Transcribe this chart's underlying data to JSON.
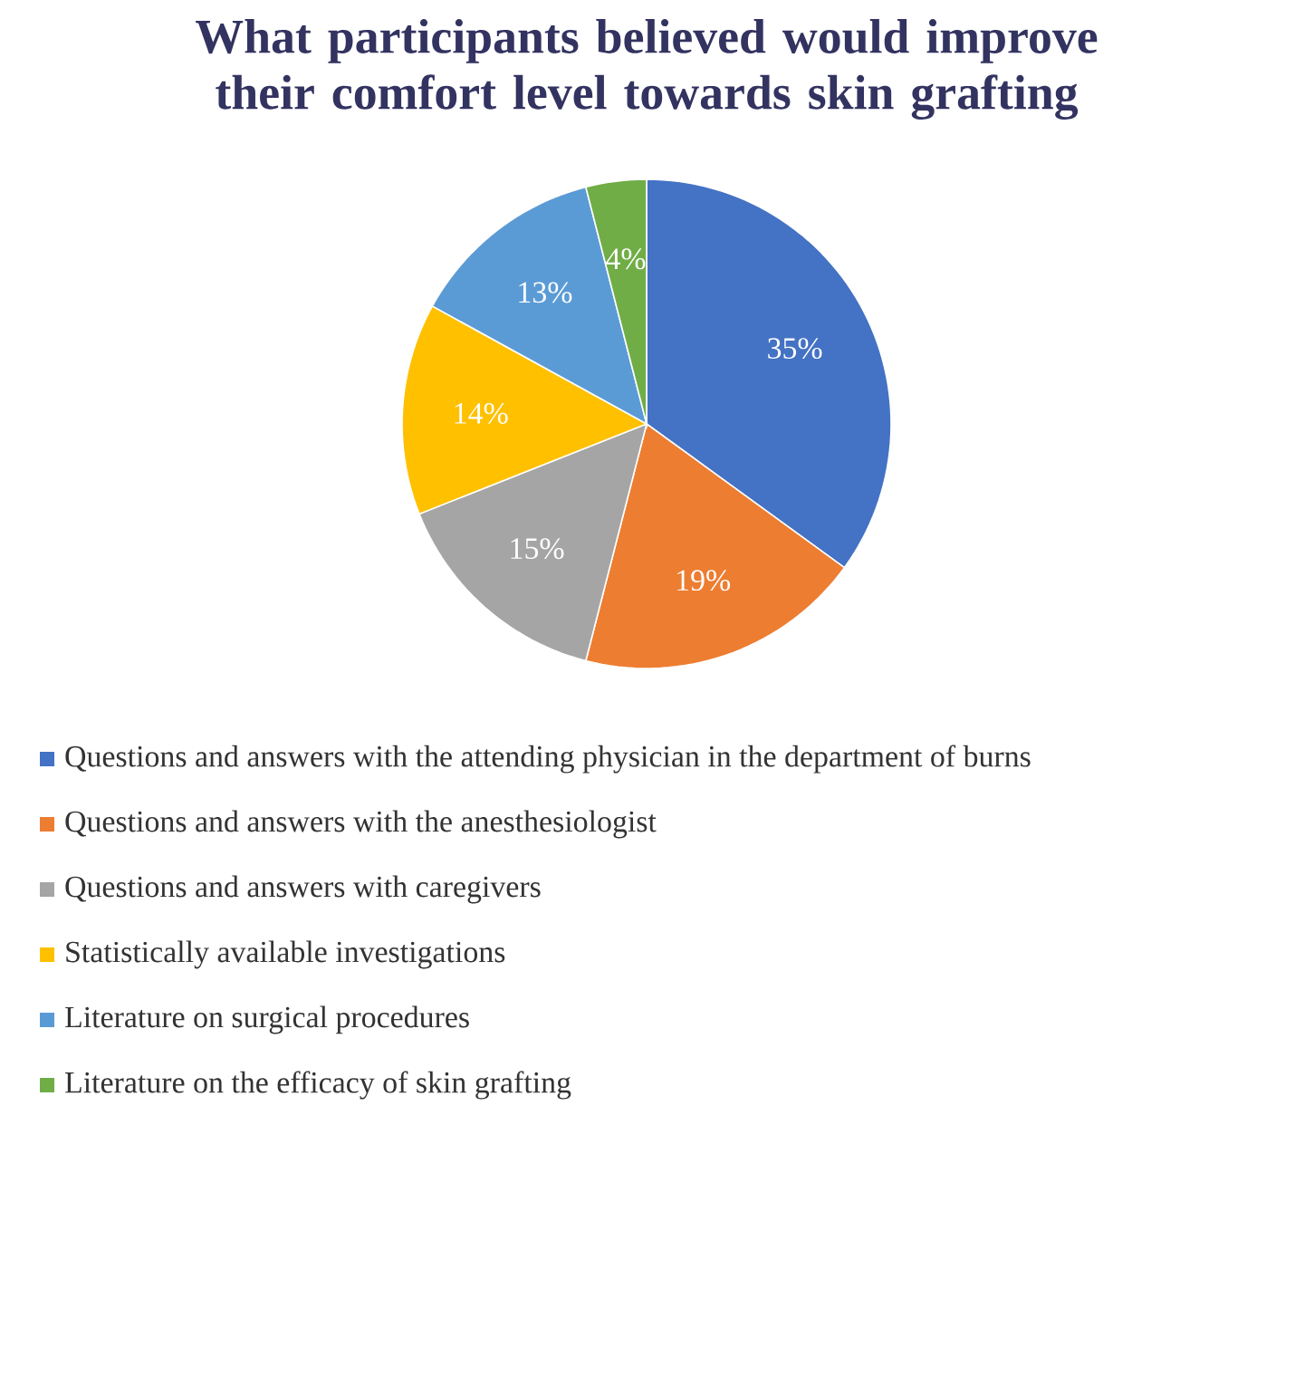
{
  "chart_data": {
    "type": "pie",
    "title": "What participants believed would improve their comfort level towards skin grafting",
    "categories": [
      "Questions and answers with the attending physician in the department of burns",
      "Questions and answers with the anesthesiologist",
      "Questions and answers with caregivers",
      "Statistically available investigations",
      "Literature on surgical procedures",
      "Literature on the efficacy of skin grafting"
    ],
    "values": [
      35,
      19,
      15,
      14,
      13,
      4
    ],
    "colors": [
      "#4472c4",
      "#ed7d31",
      "#a5a5a5",
      "#ffc000",
      "#5b9bd5",
      "#70ad47"
    ],
    "value_labels": [
      "35%",
      "19%",
      "15%",
      "14%",
      "13%",
      "4%"
    ],
    "legend": "bottom"
  }
}
